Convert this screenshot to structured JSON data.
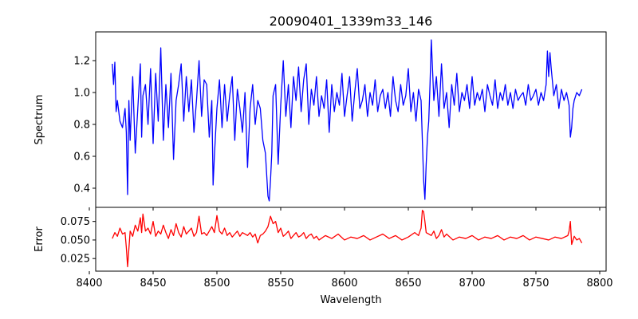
{
  "chart_data": [
    {
      "type": "line",
      "title": "20090401_1339m33_146",
      "xlabel": "",
      "ylabel": "Spectrum",
      "xlim": [
        8405,
        8805
      ],
      "ylim": [
        0.28,
        1.38
      ],
      "xticks": [
        8400,
        8450,
        8500,
        8550,
        8600,
        8650,
        8700,
        8750,
        8800
      ],
      "yticks": [
        0.4,
        0.6,
        0.8,
        1.0,
        1.2
      ],
      "ytick_labels": [
        "0.4",
        "0.6",
        "0.8",
        "1.0",
        "1.2"
      ],
      "series": [
        {
          "name": "spectrum",
          "color": "#0000ff",
          "x": [
            8418,
            8419,
            8420,
            8421,
            8422,
            8424,
            8426,
            8428,
            8429,
            8430,
            8431,
            8432,
            8434,
            8436,
            8438,
            8440,
            8441,
            8442,
            8444,
            8446,
            8448,
            8450,
            8452,
            8454,
            8456,
            8458,
            8460,
            8462,
            8464,
            8466,
            8468,
            8470,
            8472,
            8474,
            8476,
            8478,
            8480,
            8482,
            8484,
            8486,
            8488,
            8490,
            8492,
            8494,
            8496,
            8497,
            8498,
            8499,
            8500,
            8502,
            8504,
            8506,
            8508,
            8510,
            8512,
            8514,
            8516,
            8518,
            8520,
            8522,
            8524,
            8526,
            8528,
            8530,
            8532,
            8534,
            8536,
            8538,
            8540,
            8541,
            8542,
            8543,
            8544,
            8546,
            8548,
            8550,
            8552,
            8554,
            8556,
            8558,
            8560,
            8562,
            8564,
            8566,
            8568,
            8570,
            8572,
            8574,
            8576,
            8578,
            8580,
            8582,
            8584,
            8586,
            8588,
            8590,
            8592,
            8594,
            8596,
            8598,
            8600,
            8602,
            8604,
            8606,
            8608,
            8610,
            8612,
            8614,
            8616,
            8618,
            8620,
            8622,
            8624,
            8626,
            8628,
            8630,
            8632,
            8634,
            8636,
            8638,
            8640,
            8642,
            8644,
            8646,
            8648,
            8650,
            8652,
            8654,
            8656,
            8658,
            8660,
            8661,
            8662,
            8663,
            8664,
            8665,
            8666,
            8667,
            8668,
            8670,
            8672,
            8674,
            8676,
            8678,
            8680,
            8682,
            8684,
            8686,
            8688,
            8690,
            8692,
            8694,
            8696,
            8698,
            8700,
            8702,
            8704,
            8706,
            8708,
            8710,
            8712,
            8714,
            8716,
            8718,
            8720,
            8722,
            8724,
            8726,
            8728,
            8730,
            8732,
            8734,
            8736,
            8738,
            8740,
            8742,
            8744,
            8746,
            8748,
            8750,
            8752,
            8754,
            8756,
            8758,
            8759,
            8760,
            8761,
            8762,
            8764,
            8766,
            8768,
            8770,
            8772,
            8774,
            8776,
            8777,
            8778,
            8779,
            8780,
            8782,
            8784,
            8786
          ],
          "y": [
            1.18,
            1.05,
            1.19,
            0.88,
            0.95,
            0.82,
            0.78,
            0.9,
            0.75,
            0.36,
            0.95,
            0.7,
            1.1,
            0.62,
            0.9,
            1.18,
            0.72,
            0.98,
            1.05,
            0.8,
            1.15,
            0.68,
            1.12,
            0.82,
            1.28,
            0.7,
            1.05,
            0.78,
            1.12,
            0.58,
            0.95,
            1.05,
            1.18,
            0.82,
            1.1,
            0.88,
            1.08,
            0.75,
            0.95,
            1.2,
            0.85,
            1.08,
            1.05,
            0.72,
            0.95,
            0.42,
            0.6,
            0.75,
            0.9,
            1.08,
            0.78,
            1.05,
            0.82,
            0.98,
            1.1,
            0.7,
            1.02,
            0.9,
            0.75,
            1.0,
            0.53,
            0.9,
            1.05,
            0.8,
            0.95,
            0.9,
            0.7,
            0.62,
            0.35,
            0.32,
            0.45,
            0.62,
            0.98,
            1.05,
            0.55,
            0.92,
            1.2,
            0.85,
            1.05,
            0.78,
            1.1,
            0.95,
            1.16,
            0.88,
            1.08,
            1.18,
            0.8,
            1.02,
            0.92,
            1.1,
            0.85,
            0.98,
            0.9,
            1.08,
            0.75,
            1.05,
            0.88,
            1.0,
            0.92,
            1.12,
            0.85,
            0.98,
            1.1,
            0.82,
            1.0,
            1.15,
            0.9,
            0.95,
            1.05,
            0.85,
            1.0,
            0.92,
            1.08,
            0.88,
            0.98,
            1.02,
            0.9,
            1.0,
            0.85,
            1.1,
            0.95,
            0.88,
            1.05,
            0.92,
            0.98,
            1.15,
            0.88,
            1.0,
            0.82,
            1.02,
            0.95,
            0.7,
            0.45,
            0.33,
            0.55,
            0.72,
            0.82,
            1.05,
            1.33,
            0.95,
            1.1,
            0.85,
            1.18,
            0.9,
            1.0,
            0.78,
            1.05,
            0.92,
            1.12,
            0.88,
            1.0,
            0.95,
            1.05,
            0.9,
            1.1,
            0.92,
            1.0,
            0.95,
            1.02,
            0.88,
            1.05,
            0.98,
            0.92,
            1.08,
            0.9,
            1.0,
            0.95,
            1.05,
            0.92,
            1.0,
            0.9,
            1.02,
            0.95,
            0.98,
            1.0,
            0.92,
            1.05,
            0.95,
            0.98,
            1.02,
            0.92,
            1.0,
            0.95,
            1.05,
            1.26,
            1.1,
            1.25,
            1.15,
            0.98,
            1.05,
            0.9,
            1.02,
            0.95,
            1.0,
            0.92,
            0.72,
            0.78,
            0.9,
            0.95,
            1.0,
            0.98,
            1.02
          ]
        }
      ]
    },
    {
      "type": "line",
      "title": "",
      "xlabel": "Wavelength",
      "ylabel": "Error",
      "xlim": [
        8405,
        8805
      ],
      "ylim": [
        0.008,
        0.094
      ],
      "xticks": [
        8400,
        8450,
        8500,
        8550,
        8600,
        8650,
        8700,
        8750,
        8800
      ],
      "xtick_labels": [
        "8400",
        "8450",
        "8500",
        "8550",
        "8600",
        "8650",
        "8700",
        "8750",
        "8800"
      ],
      "yticks": [
        0.025,
        0.05,
        0.075
      ],
      "ytick_labels": [
        "0.025",
        "0.050",
        "0.075"
      ],
      "series": [
        {
          "name": "error",
          "color": "#ff0000",
          "x": [
            8418,
            8420,
            8422,
            8424,
            8426,
            8428,
            8429,
            8430,
            8432,
            8434,
            8436,
            8438,
            8440,
            8441,
            8442,
            8444,
            8446,
            8448,
            8450,
            8452,
            8454,
            8456,
            8458,
            8460,
            8462,
            8464,
            8466,
            8468,
            8470,
            8472,
            8474,
            8476,
            8478,
            8480,
            8482,
            8484,
            8486,
            8488,
            8490,
            8492,
            8494,
            8496,
            8498,
            8500,
            8502,
            8504,
            8506,
            8508,
            8510,
            8512,
            8514,
            8516,
            8518,
            8520,
            8522,
            8524,
            8526,
            8528,
            8530,
            8532,
            8534,
            8536,
            8538,
            8540,
            8542,
            8544,
            8546,
            8548,
            8550,
            8552,
            8554,
            8556,
            8558,
            8560,
            8562,
            8564,
            8566,
            8568,
            8570,
            8572,
            8574,
            8576,
            8578,
            8580,
            8585,
            8590,
            8595,
            8600,
            8605,
            8610,
            8615,
            8620,
            8625,
            8630,
            8635,
            8640,
            8645,
            8650,
            8655,
            8658,
            8660,
            8661,
            8662,
            8663,
            8664,
            8666,
            8668,
            8670,
            8672,
            8674,
            8676,
            8678,
            8680,
            8685,
            8690,
            8695,
            8700,
            8705,
            8710,
            8715,
            8720,
            8725,
            8730,
            8735,
            8740,
            8745,
            8750,
            8755,
            8760,
            8765,
            8770,
            8775,
            8776,
            8777,
            8778,
            8780,
            8782,
            8784,
            8786
          ],
          "y": [
            0.052,
            0.06,
            0.055,
            0.066,
            0.058,
            0.06,
            0.04,
            0.014,
            0.062,
            0.055,
            0.07,
            0.062,
            0.08,
            0.06,
            0.085,
            0.062,
            0.066,
            0.058,
            0.075,
            0.055,
            0.062,
            0.058,
            0.07,
            0.06,
            0.052,
            0.064,
            0.056,
            0.072,
            0.06,
            0.054,
            0.068,
            0.058,
            0.062,
            0.066,
            0.055,
            0.06,
            0.082,
            0.058,
            0.06,
            0.056,
            0.062,
            0.068,
            0.06,
            0.083,
            0.062,
            0.058,
            0.066,
            0.056,
            0.06,
            0.054,
            0.058,
            0.062,
            0.055,
            0.06,
            0.058,
            0.056,
            0.06,
            0.054,
            0.058,
            0.046,
            0.056,
            0.058,
            0.062,
            0.068,
            0.082,
            0.072,
            0.075,
            0.06,
            0.066,
            0.055,
            0.058,
            0.062,
            0.052,
            0.056,
            0.06,
            0.054,
            0.056,
            0.06,
            0.052,
            0.056,
            0.058,
            0.052,
            0.055,
            0.05,
            0.056,
            0.052,
            0.058,
            0.05,
            0.054,
            0.052,
            0.056,
            0.05,
            0.054,
            0.058,
            0.052,
            0.056,
            0.05,
            0.054,
            0.06,
            0.056,
            0.066,
            0.09,
            0.088,
            0.075,
            0.06,
            0.058,
            0.056,
            0.062,
            0.052,
            0.056,
            0.064,
            0.054,
            0.058,
            0.05,
            0.054,
            0.052,
            0.056,
            0.05,
            0.054,
            0.052,
            0.056,
            0.05,
            0.054,
            0.052,
            0.056,
            0.05,
            0.054,
            0.052,
            0.05,
            0.054,
            0.052,
            0.056,
            0.062,
            0.075,
            0.044,
            0.055,
            0.05,
            0.052,
            0.046
          ]
        }
      ]
    }
  ]
}
